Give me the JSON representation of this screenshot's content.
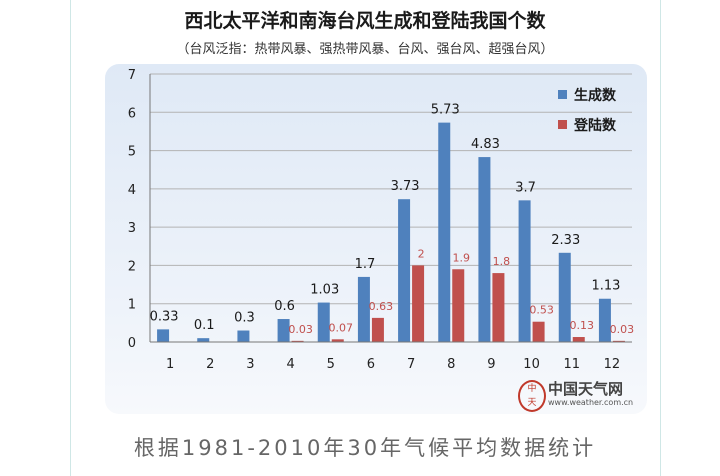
{
  "chart_data": {
    "type": "bar",
    "title": "西北太平洋和南海台风生成和登陆我国个数",
    "subtitle": "（台风泛指：热带风暴、强热带风暴、台风、强台风、超强台风）",
    "categories": [
      "1",
      "2",
      "3",
      "4",
      "5",
      "6",
      "7",
      "8",
      "9",
      "10",
      "11",
      "12"
    ],
    "series": [
      {
        "name": "生成数",
        "color": "#4f81bd",
        "values": [
          0.33,
          0.1,
          0.3,
          0.6,
          1.03,
          1.7,
          3.73,
          5.73,
          4.83,
          3.7,
          2.33,
          1.13
        ],
        "labels": [
          "0.33",
          "0.1",
          "0.3",
          "0.6",
          "1.03",
          "1.7",
          "3.73",
          "5.73",
          "4.83",
          "3.7",
          "2.33",
          "1.13"
        ]
      },
      {
        "name": "登陆数",
        "color": "#c0504d",
        "values": [
          0,
          0,
          0,
          0.03,
          0.07,
          0.63,
          2,
          1.9,
          1.8,
          0.53,
          0.13,
          0.03
        ],
        "labels": [
          "",
          "",
          "",
          "0.03",
          "0.07",
          "0.63",
          "2",
          "1.9",
          "1.8",
          "0.53",
          "0.13",
          "0.03"
        ]
      }
    ],
    "yticks": [
      "0",
      "1",
      "2",
      "3",
      "4",
      "5",
      "6",
      "7"
    ],
    "ylim": [
      0,
      7
    ],
    "grid": true,
    "legend": "top-right"
  },
  "logo": {
    "text": "中国天气网",
    "url": "www.weather.com.cn"
  },
  "caption": "根据1981-2010年30年气候平均数据统计"
}
